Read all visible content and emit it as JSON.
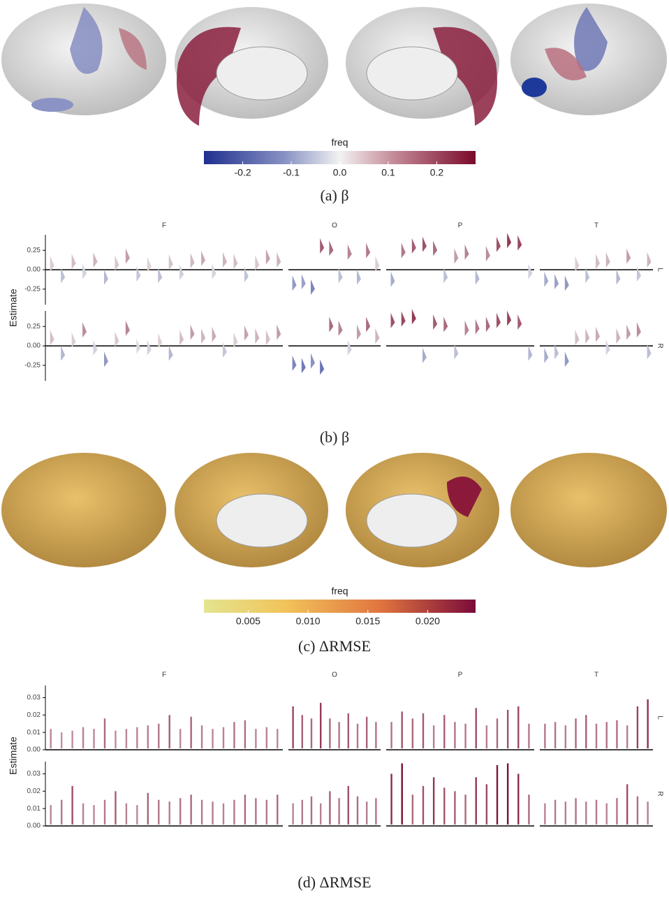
{
  "chart_data": [
    {
      "type": "colorbar",
      "title": "freq",
      "caption": "(a) β",
      "scheme": "diverging",
      "xlim": [
        -0.28,
        0.28
      ],
      "xticks": [
        -0.2,
        -0.1,
        {
          "value": 0,
          "label": "0.0"
        },
        0.1,
        0.2
      ]
    },
    {
      "type": "violin",
      "caption": "(b) β",
      "ylabel": "Estimate",
      "columns": [
        "F",
        "O",
        "P",
        "T"
      ],
      "rows": [
        "L",
        "R"
      ],
      "ylim": [
        -0.45,
        0.45
      ],
      "yticks": [
        {
          "value": -0.25,
          "label": "-0.25"
        },
        {
          "value": 0,
          "label": "0.00"
        },
        {
          "value": 0.25,
          "label": "0.25"
        }
      ],
      "values": [
        [
          [
            0.05,
            -0.1,
            0.08,
            -0.05,
            0.1,
            -0.12,
            0.06,
            0.15,
            -0.08,
            0.04,
            -0.1,
            0.07,
            -0.06,
            0.09,
            0.12,
            -0.05,
            0.1,
            0.08,
            -0.09,
            0.06,
            0.14,
            0.1
          ],
          [
            -0.2,
            -0.18,
            -0.25,
            0.28,
            0.25,
            -0.1,
            0.2,
            -0.12,
            0.22,
            0.05
          ],
          [
            -0.15,
            0.22,
            0.28,
            0.3,
            0.25,
            -0.1,
            0.15,
            0.2,
            -0.12,
            0.18,
            0.3,
            0.35,
            0.32,
            -0.05
          ],
          [
            -0.15,
            -0.18,
            -0.2,
            0.05,
            -0.1,
            0.08,
            0.1,
            -0.12,
            0.15,
            -0.08,
            0.1
          ]
        ],
        [
          [
            0.08,
            -0.12,
            0.05,
            0.18,
            -0.05,
            -0.2,
            0.06,
            0.2,
            -0.03,
            -0.05,
            0.04,
            -0.12,
            0.08,
            0.15,
            0.1,
            0.12,
            -0.08,
            0.05,
            0.14,
            0.1,
            0.08,
            0.15
          ],
          [
            -0.25,
            -0.28,
            -0.22,
            -0.3,
            0.25,
            0.2,
            -0.05,
            0.15,
            0.25,
            0.1
          ],
          [
            0.3,
            0.32,
            0.35,
            -0.15,
            0.28,
            0.25,
            -0.1,
            0.2,
            0.22,
            0.25,
            0.3,
            0.33,
            0.28,
            -0.12
          ],
          [
            -0.15,
            -0.1,
            -0.2,
            0.08,
            0.1,
            0.12,
            -0.05,
            0.1,
            0.15,
            0.18,
            -0.1
          ]
        ]
      ]
    },
    {
      "type": "colorbar",
      "title": "freq",
      "caption": "(c) ΔRMSE",
      "scheme": "sequential",
      "xlim": [
        0.0013,
        0.024
      ],
      "xticks": [
        0.005,
        {
          "value": 0.01,
          "label": "0.010"
        },
        0.015,
        {
          "value": 0.02,
          "label": "0.020"
        }
      ]
    },
    {
      "type": "strip",
      "caption": "(d) ΔRMSE",
      "ylabel": "Estimate",
      "columns": [
        "F",
        "O",
        "P",
        "T"
      ],
      "rows": [
        "L",
        "R"
      ],
      "ylim": [
        0,
        0.037
      ],
      "yticks": [
        {
          "value": 0,
          "label": "0.00"
        },
        {
          "value": 0.01,
          "label": "0.01"
        },
        {
          "value": 0.02,
          "label": "0.02"
        },
        {
          "value": 0.03,
          "label": "0.03"
        }
      ],
      "values": [
        [
          [
            0.012,
            0.01,
            0.011,
            0.013,
            0.012,
            0.018,
            0.011,
            0.012,
            0.013,
            0.014,
            0.015,
            0.02,
            0.012,
            0.019,
            0.014,
            0.012,
            0.013,
            0.016,
            0.017,
            0.012,
            0.013,
            0.012
          ],
          [
            0.025,
            0.02,
            0.018,
            0.027,
            0.018,
            0.016,
            0.021,
            0.015,
            0.019,
            0.016
          ],
          [
            0.016,
            0.022,
            0.018,
            0.021,
            0.014,
            0.02,
            0.016,
            0.015,
            0.024,
            0.014,
            0.018,
            0.023,
            0.025,
            0.015
          ],
          [
            0.015,
            0.016,
            0.014,
            0.018,
            0.02,
            0.015,
            0.016,
            0.017,
            0.014,
            0.025,
            0.029
          ]
        ],
        [
          [
            0.012,
            0.015,
            0.023,
            0.013,
            0.012,
            0.015,
            0.02,
            0.013,
            0.012,
            0.019,
            0.015,
            0.014,
            0.016,
            0.018,
            0.015,
            0.014,
            0.013,
            0.015,
            0.018,
            0.016,
            0.015,
            0.018
          ],
          [
            0.013,
            0.015,
            0.017,
            0.013,
            0.02,
            0.016,
            0.023,
            0.017,
            0.014,
            0.016
          ],
          [
            0.03,
            0.036,
            0.018,
            0.023,
            0.028,
            0.022,
            0.02,
            0.018,
            0.028,
            0.024,
            0.035,
            0.036,
            0.03,
            0.018
          ],
          [
            0.013,
            0.015,
            0.014,
            0.016,
            0.014,
            0.015,
            0.013,
            0.016,
            0.024,
            0.017,
            0.014
          ]
        ]
      ]
    }
  ]
}
